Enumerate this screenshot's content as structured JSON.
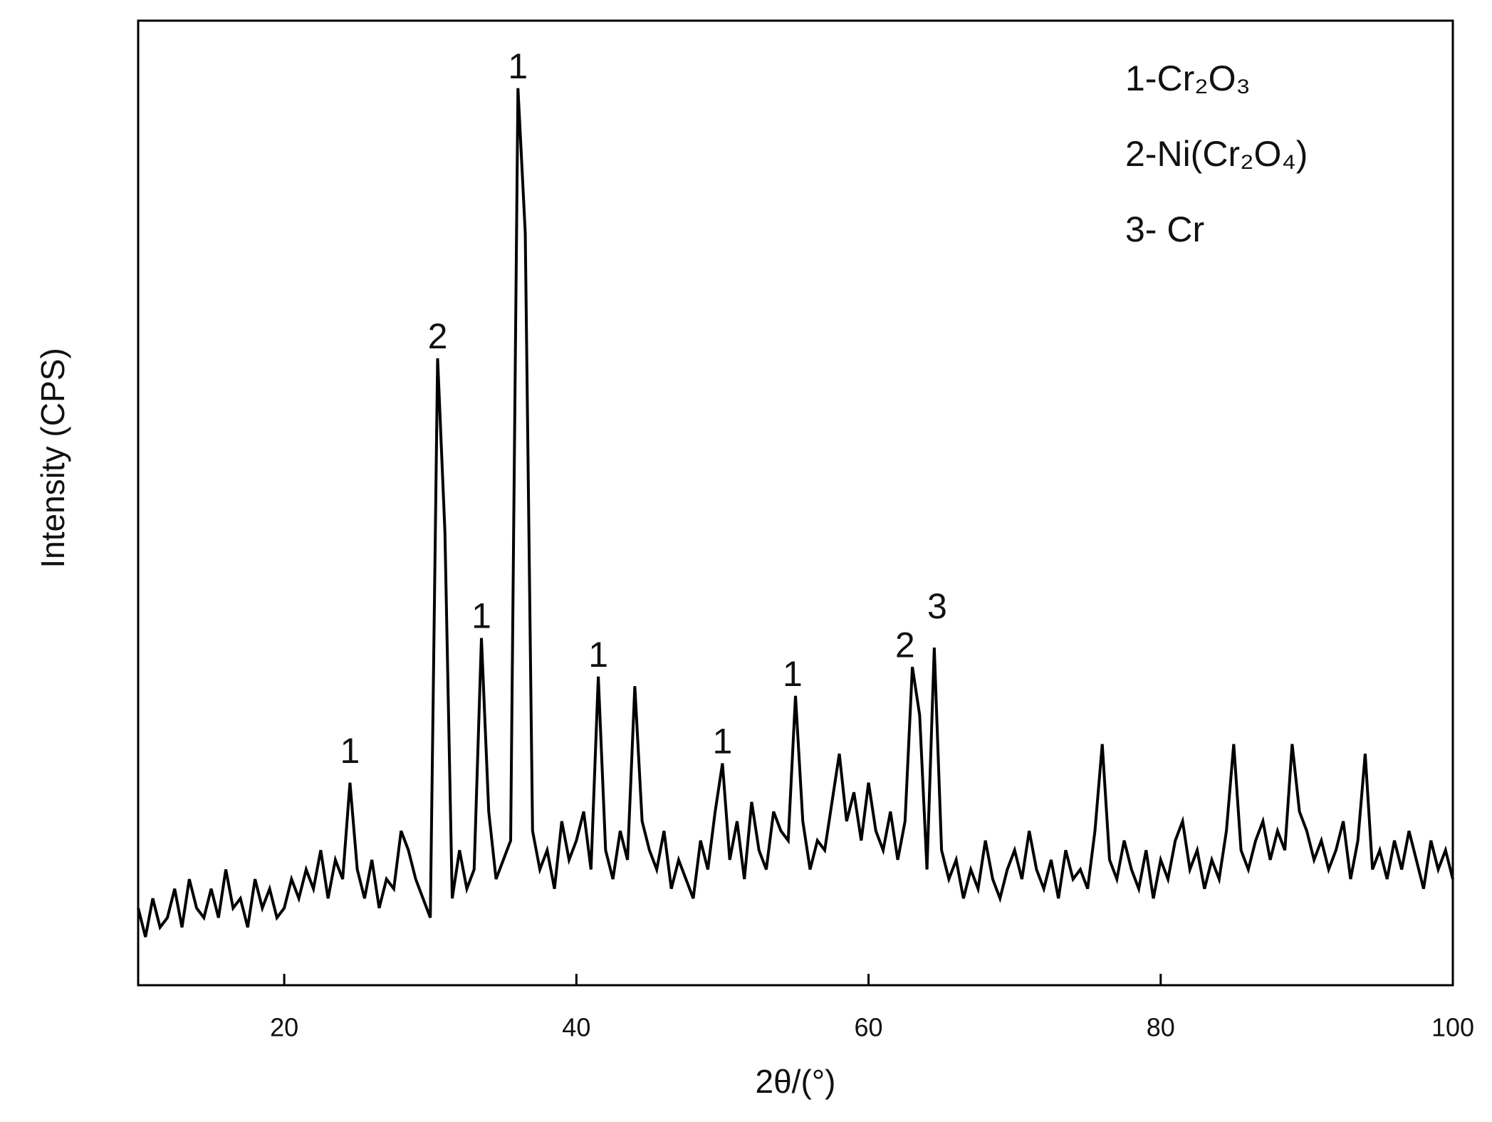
{
  "chart_data": {
    "type": "line",
    "xlabel": "2θ/(°)",
    "ylabel": "Intensity (CPS)",
    "xlim": [
      10,
      100
    ],
    "ylim": [
      0,
      100
    ],
    "xticks": [
      20,
      40,
      60,
      80,
      100
    ],
    "legend_texts": [
      "1-Cr₂O₃",
      "2-Ni(Cr₂O₄)",
      "3- Cr"
    ],
    "annotations": [
      {
        "text": "1",
        "x": 24.5,
        "y": 24
      },
      {
        "text": "2",
        "x": 30.5,
        "y": 67
      },
      {
        "text": "1",
        "x": 33.5,
        "y": 38
      },
      {
        "text": "1",
        "x": 36,
        "y": 95
      },
      {
        "text": "1",
        "x": 41.5,
        "y": 34
      },
      {
        "text": "1",
        "x": 50,
        "y": 25
      },
      {
        "text": "1",
        "x": 54.8,
        "y": 32
      },
      {
        "text": "2",
        "x": 62.5,
        "y": 35
      },
      {
        "text": "3",
        "x": 64.7,
        "y": 39
      }
    ],
    "series": [
      {
        "color": "#000000",
        "x": [
          10,
          10.5,
          11,
          11.5,
          12,
          12.5,
          13,
          13.5,
          14,
          14.5,
          15,
          15.5,
          16,
          16.5,
          17,
          17.5,
          18,
          18.5,
          19,
          19.5,
          20,
          20.5,
          21,
          21.5,
          22,
          22.5,
          23,
          23.5,
          24,
          24.5,
          25,
          25.5,
          26,
          26.5,
          27,
          27.5,
          28,
          28.5,
          29,
          29.5,
          30,
          30.5,
          31,
          31.5,
          32,
          32.5,
          33,
          33.5,
          34,
          34.5,
          35,
          35.5,
          36,
          36.5,
          37,
          37.5,
          38,
          38.5,
          39,
          39.5,
          40,
          40.5,
          41,
          41.5,
          42,
          42.5,
          43,
          43.5,
          44,
          44.5,
          45,
          45.5,
          46,
          46.5,
          47,
          47.5,
          48,
          48.5,
          49,
          49.5,
          50,
          50.5,
          51,
          51.5,
          52,
          52.5,
          53,
          53.5,
          54,
          54.5,
          55,
          55.5,
          56,
          56.5,
          57,
          57.5,
          58,
          58.5,
          59,
          59.5,
          60,
          60.5,
          61,
          61.5,
          62,
          62.5,
          63,
          63.5,
          64,
          64.5,
          65,
          65.5,
          66,
          66.5,
          67,
          67.5,
          68,
          68.5,
          69,
          69.5,
          70,
          70.5,
          71,
          71.5,
          72,
          72.5,
          73,
          73.5,
          74,
          74.5,
          75,
          75.5,
          76,
          76.5,
          77,
          77.5,
          78,
          78.5,
          79,
          79.5,
          80,
          80.5,
          81,
          81.5,
          82,
          82.5,
          83,
          83.5,
          84,
          84.5,
          85,
          85.5,
          86,
          86.5,
          87,
          87.5,
          88,
          88.5,
          89,
          89.5,
          90,
          90.5,
          91,
          91.5,
          92,
          92.5,
          93,
          93.5,
          94,
          94.5,
          95,
          95.5,
          96,
          96.5,
          97,
          97.5,
          98,
          98.5,
          99,
          99.5,
          100
        ],
        "values": [
          8,
          5,
          9,
          6,
          7,
          10,
          6,
          11,
          8,
          7,
          10,
          7,
          12,
          8,
          9,
          6,
          11,
          8,
          10,
          7,
          8,
          11,
          9,
          12,
          10,
          14,
          9,
          13,
          11,
          21,
          12,
          9,
          13,
          8,
          11,
          10,
          16,
          14,
          11,
          9,
          7,
          65,
          47,
          9,
          14,
          10,
          12,
          36,
          18,
          11,
          13,
          15,
          93,
          78,
          16,
          12,
          14,
          10,
          17,
          13,
          15,
          18,
          12,
          32,
          14,
          11,
          16,
          13,
          31,
          17,
          14,
          12,
          16,
          10,
          13,
          11,
          9,
          15,
          12,
          18,
          23,
          13,
          17,
          11,
          19,
          14,
          12,
          18,
          16,
          15,
          30,
          17,
          12,
          15,
          14,
          19,
          24,
          17,
          20,
          15,
          21,
          16,
          14,
          18,
          13,
          17,
          33,
          28,
          12,
          35,
          14,
          11,
          13,
          9,
          12,
          10,
          15,
          11,
          9,
          12,
          14,
          11,
          16,
          12,
          10,
          13,
          9,
          14,
          11,
          12,
          10,
          16,
          25,
          13,
          11,
          15,
          12,
          10,
          14,
          9,
          13,
          11,
          15,
          17,
          12,
          14,
          10,
          13,
          11,
          16,
          25,
          14,
          12,
          15,
          17,
          13,
          16,
          14,
          25,
          18,
          16,
          13,
          15,
          12,
          14,
          17,
          11,
          15,
          24,
          12,
          14,
          11,
          15,
          12,
          16,
          13,
          10,
          15,
          12,
          14,
          11
        ]
      }
    ]
  }
}
